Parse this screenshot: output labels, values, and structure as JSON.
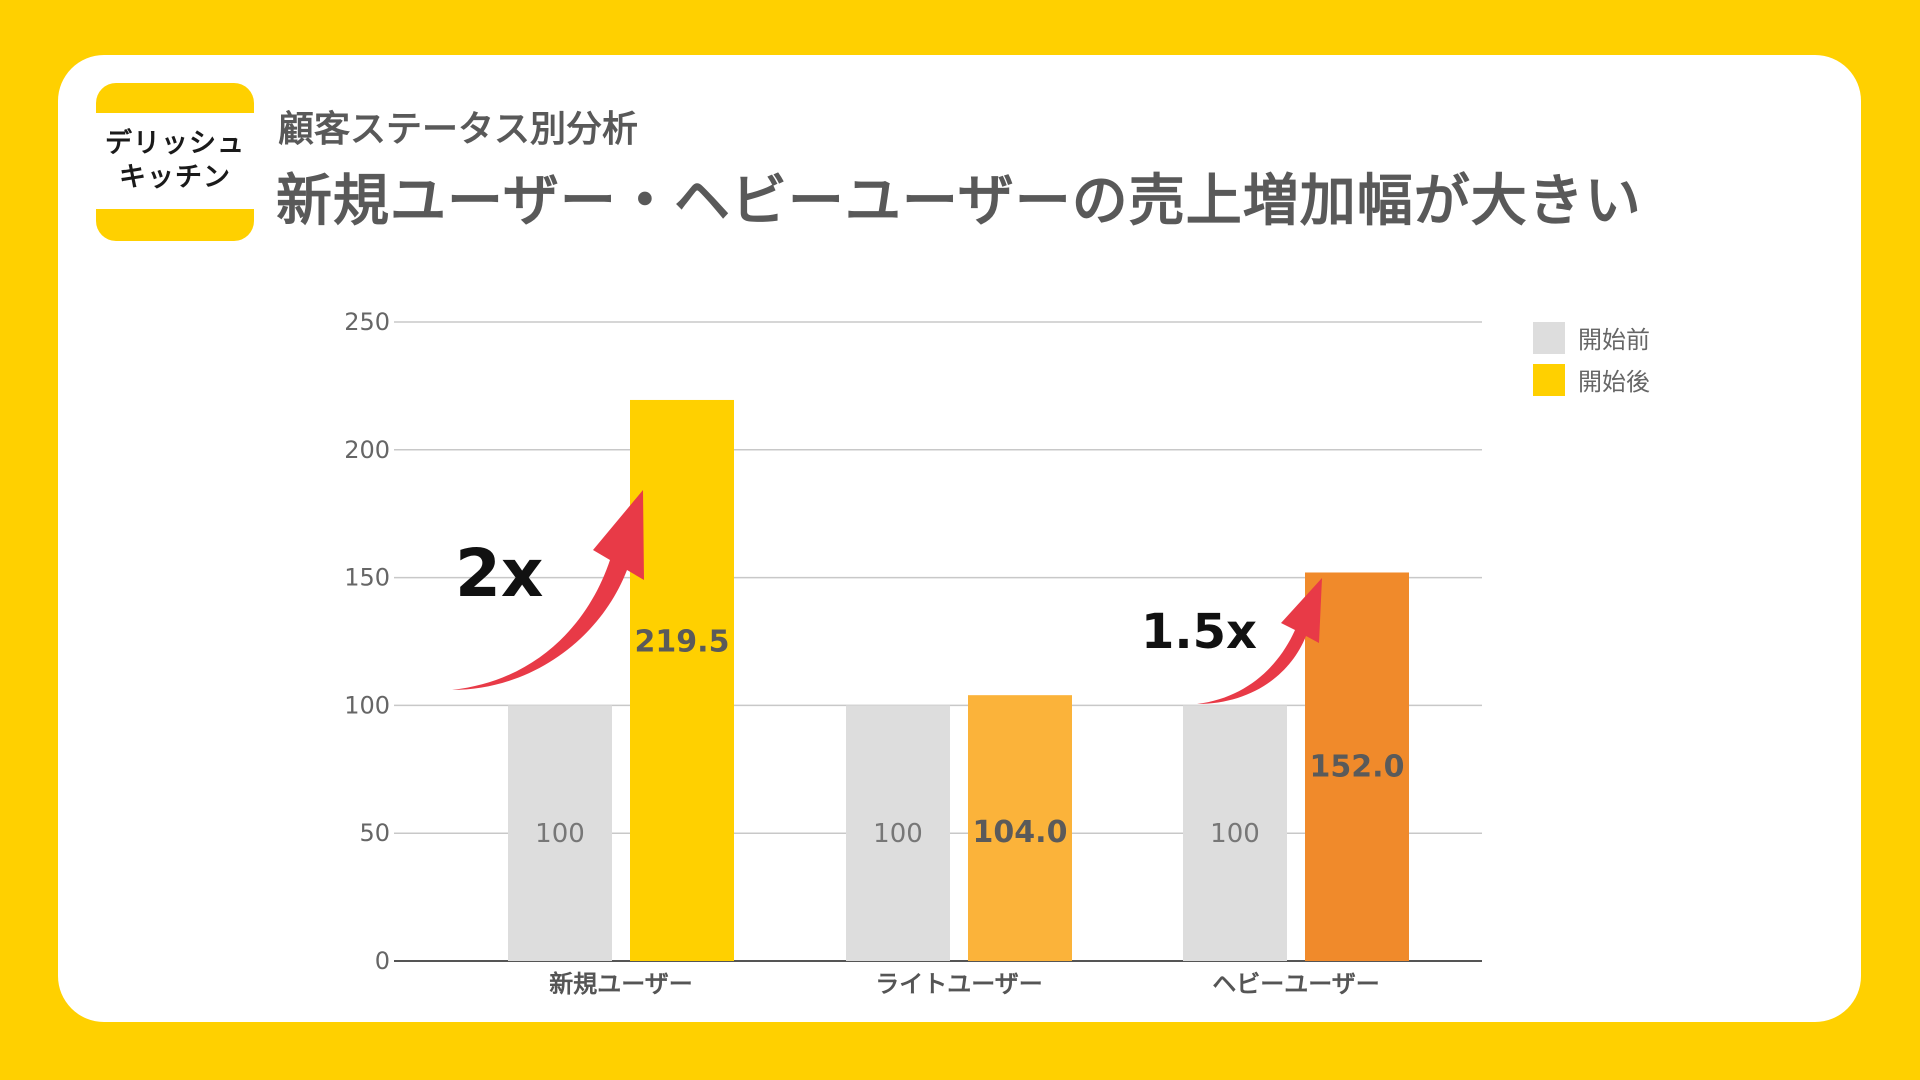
{
  "logo": {
    "line1": "デリッシュ",
    "line2": "キッチン"
  },
  "subtitle": "顧客ステータス別分析",
  "title": "新規ユーザー・ヘビーユーザーの売上増加幅が大きい",
  "colors": {
    "background": "#FFD000",
    "before": "#DDDDDD",
    "after_new": "#FFD000",
    "after_light": "#FBB33A",
    "after_heavy": "#F08A2B",
    "arrow": "#E83A47"
  },
  "annotations": [
    {
      "text": "2x",
      "category": "新規ユーザー"
    },
    {
      "text": "1.5x",
      "category": "ヘビーユーザー"
    }
  ],
  "chart_data": {
    "type": "bar",
    "categories": [
      "新規ユーザー",
      "ライトユーザー",
      "ヘビーユーザー"
    ],
    "series": [
      {
        "name": "開始前",
        "values": [
          100,
          100,
          100
        ],
        "labels": [
          "100",
          "100",
          "100"
        ]
      },
      {
        "name": "開始後",
        "values": [
          219.5,
          104.0,
          152.0
        ],
        "labels": [
          "219.5",
          "104.0",
          "152.0"
        ]
      }
    ],
    "yticks": [
      "0",
      "50",
      "100",
      "150",
      "200",
      "250"
    ],
    "ylim": [
      0,
      250
    ],
    "grid": true,
    "legend": "top-right"
  }
}
